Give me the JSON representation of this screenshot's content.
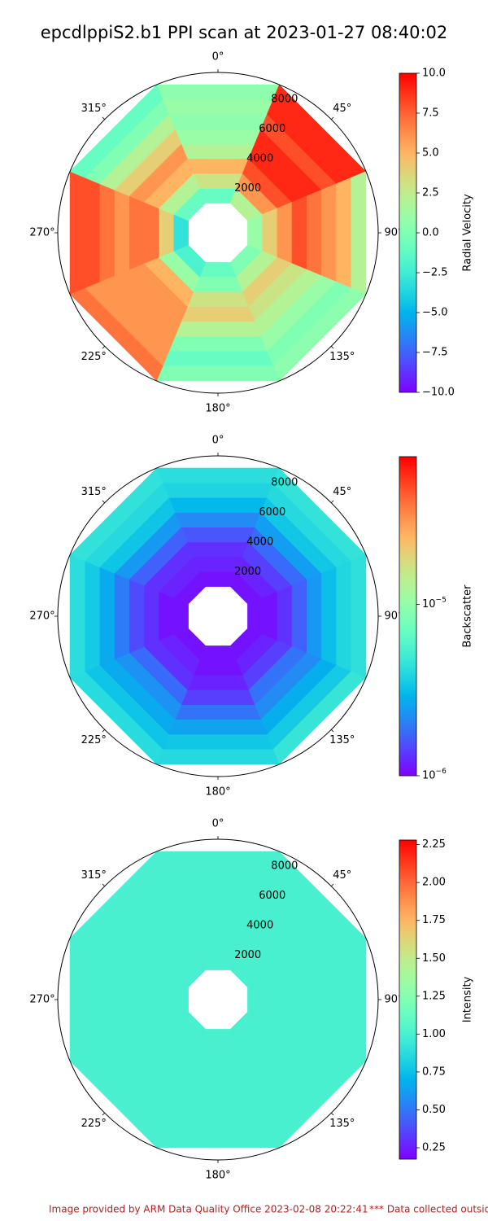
{
  "title": "epcdlppiS2.b1 PPI scan at 2023-01-27 08:40:02",
  "footer": [
    "Image provided by ARM Data Quality Office 2023-02-08 20:22:41",
    "*** Data collected outside"
  ],
  "chart_data": [
    {
      "type": "polar",
      "thetaticks": [
        {
          "value": 0,
          "label": "0°"
        },
        {
          "value": 45,
          "label": "45°"
        },
        {
          "value": 90,
          "label": "90°"
        },
        {
          "value": 135,
          "label": "135°"
        },
        {
          "value": 180,
          "label": "180°"
        },
        {
          "value": 225,
          "label": "225°"
        },
        {
          "value": 270,
          "label": "270°"
        },
        {
          "value": 315,
          "label": "315°"
        }
      ],
      "rlim": [
        -1000,
        9000
      ],
      "rticks": [
        2000,
        4000,
        6000,
        8000
      ],
      "azimuths": [
        0,
        45,
        90,
        135,
        180,
        225,
        270,
        315
      ],
      "range_edges": [
        1000,
        2000,
        3000,
        4000,
        5000,
        6000,
        7000,
        8000,
        9000
      ],
      "values": [
        [
          -1,
          3,
          5,
          2,
          1,
          0.5,
          1,
          0.5
        ],
        [
          2,
          6,
          8,
          9,
          9,
          8,
          9,
          9
        ],
        [
          1,
          4,
          6,
          8,
          7,
          6,
          5,
          2
        ],
        [
          0,
          2,
          4,
          3,
          2,
          1,
          0,
          0.5
        ],
        [
          -1,
          0,
          3,
          4,
          2,
          0,
          -1,
          0
        ],
        [
          -2,
          1,
          5,
          6,
          6,
          6,
          6,
          7
        ],
        [
          -3,
          4,
          7,
          7,
          6,
          7,
          8,
          8
        ],
        [
          -1,
          2,
          5,
          6,
          4,
          2,
          0,
          -1
        ]
      ],
      "colorbar": {
        "label": "Radial Velocity",
        "cmap": "rainbow",
        "log": false,
        "clim": [
          -10,
          10
        ],
        "ticks": [
          {
            "value": 10,
            "label": "10.0"
          },
          7.5,
          {
            "value": 5,
            "label": "5.0"
          },
          2.5,
          {
            "value": 0,
            "label": "0.0"
          },
          {
            "value": -2.5,
            "label": "−2.5"
          },
          {
            "value": -5,
            "label": "−5.0"
          },
          {
            "value": -7.5,
            "label": "−7.5"
          },
          {
            "value": -10,
            "label": "−10.0"
          }
        ]
      }
    },
    {
      "type": "polar",
      "thetaticks": [
        {
          "value": 0,
          "label": "0°"
        },
        {
          "value": 45,
          "label": "45°"
        },
        {
          "value": 90,
          "label": "90°"
        },
        {
          "value": 135,
          "label": "135°"
        },
        {
          "value": 180,
          "label": "180°"
        },
        {
          "value": 225,
          "label": "225°"
        },
        {
          "value": 270,
          "label": "270°"
        },
        {
          "value": 315,
          "label": "315°"
        }
      ],
      "rlim": [
        -1000,
        9000
      ],
      "rticks": [
        2000,
        4000,
        6000,
        8000
      ],
      "azimuths": [
        0,
        45,
        90,
        135,
        180,
        225,
        270,
        315
      ],
      "range_edges": [
        1000,
        2000,
        3000,
        4000,
        5000,
        6000,
        7000,
        8000,
        9000
      ],
      "values": [
        [
          1.1e-06,
          1.2e-06,
          1.3e-06,
          1.6e-06,
          2.2e-06,
          3e-06,
          3.8e-06,
          4.2e-06
        ],
        [
          1.1e-06,
          1.2e-06,
          1.4e-06,
          1.8e-06,
          2.5e-06,
          3.4e-06,
          4e-06,
          4.5e-06
        ],
        [
          1.1e-06,
          1.1e-06,
          1.3e-06,
          1.7e-06,
          2.4e-06,
          3.2e-06,
          3.9e-06,
          4.3e-06
        ],
        [
          1.1e-06,
          1.2e-06,
          1.4e-06,
          1.9e-06,
          2.2e-06,
          2.8e-06,
          3.5e-06,
          4.6e-06
        ],
        [
          1.1e-06,
          1.1e-06,
          1.2e-06,
          1.4e-06,
          1.9e-06,
          2.6e-06,
          3.4e-06,
          4e-06
        ],
        [
          1.1e-06,
          1.2e-06,
          1.3e-06,
          1.8e-06,
          2.3e-06,
          2.7e-06,
          3.3e-06,
          4.1e-06
        ],
        [
          1.1e-06,
          1.1e-06,
          1.3e-06,
          1.5e-06,
          2e-06,
          2.7e-06,
          3.5e-06,
          4.2e-06
        ],
        [
          1.1e-06,
          1.2e-06,
          1.3e-06,
          1.7e-06,
          2.4e-06,
          3.3e-06,
          4e-06,
          4.4e-06
        ]
      ],
      "colorbar": {
        "label": "Backscatter",
        "cmap": "rainbow",
        "log": true,
        "clim": [
          1e-06,
          7.3e-05
        ],
        "ticks": [
          {
            "value": 1e-05,
            "label": "10",
            "exponent": "−5"
          },
          {
            "value": 1e-06,
            "label": "10",
            "exponent": "−6"
          }
        ]
      }
    },
    {
      "type": "polar",
      "thetaticks": [
        {
          "value": 0,
          "label": "0°"
        },
        {
          "value": 45,
          "label": "45°"
        },
        {
          "value": 90,
          "label": "90°"
        },
        {
          "value": 135,
          "label": "135°"
        },
        {
          "value": 180,
          "label": "180°"
        },
        {
          "value": 225,
          "label": "225°"
        },
        {
          "value": 270,
          "label": "270°"
        },
        {
          "value": 315,
          "label": "315°"
        }
      ],
      "rlim": [
        -1000,
        9000
      ],
      "rticks": [
        2000,
        4000,
        6000,
        8000
      ],
      "azimuths": [
        0,
        45,
        90,
        135,
        180,
        225,
        270,
        315
      ],
      "range_edges": [
        1000,
        2000,
        3000,
        4000,
        5000,
        6000,
        7000,
        8000,
        9000
      ],
      "values": [
        [
          1,
          1,
          1,
          1,
          1,
          1,
          1,
          1
        ],
        [
          1,
          1,
          1,
          1,
          1,
          1,
          1,
          1
        ],
        [
          1,
          1,
          1,
          1,
          1,
          1,
          1,
          1
        ],
        [
          1,
          1,
          1,
          1,
          1,
          1,
          1,
          1
        ],
        [
          1,
          1,
          1,
          1,
          1,
          1,
          1,
          1
        ],
        [
          1,
          1,
          1,
          1,
          1,
          1,
          1,
          1
        ],
        [
          1,
          1,
          1,
          1,
          1,
          1,
          1,
          1
        ],
        [
          1,
          1,
          1,
          1,
          1,
          1,
          1,
          1
        ]
      ],
      "colorbar": {
        "label": "Intensity",
        "cmap": "rainbow",
        "log": false,
        "clim": [
          0.175,
          2.28
        ],
        "ticks": [
          {
            "value": 2.25,
            "label": "2.25"
          },
          {
            "value": 2,
            "label": "2.00"
          },
          1.75,
          {
            "value": 1.5,
            "label": "1.50"
          },
          1.25,
          {
            "value": 1,
            "label": "1.00"
          },
          0.75,
          {
            "value": 0.5,
            "label": "0.50"
          },
          0.25
        ]
      }
    }
  ]
}
